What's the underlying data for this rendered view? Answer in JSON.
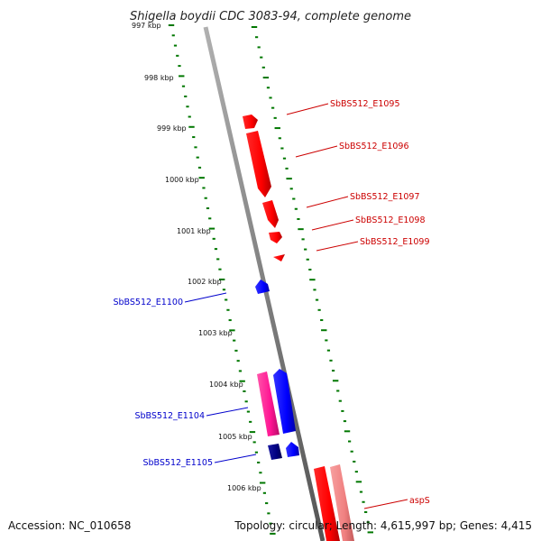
{
  "title": "Shigella boydii CDC 3083-94, complete genome",
  "footer": {
    "accession": "Accession: NC_010658",
    "summary": "Topology: circular; Length: 4,615,997 bp; Genes: 4,415"
  },
  "ruler": {
    "labels": [
      "997 kbp",
      "998 kbp",
      "999 kbp",
      "1000 kbp",
      "1001 kbp",
      "1002 kbp",
      "1003 kbp",
      "1004 kbp",
      "1005 kbp",
      "1006 kbp"
    ]
  },
  "colors": {
    "forward": "#ff0000",
    "forward_light": "#f08080",
    "reverse": "#0000ff",
    "reverse_pink": "#ff1493",
    "reverse_dark": "#000080",
    "backbone": "#808080",
    "ticks": "#007700"
  },
  "genes": [
    {
      "label": "SbBS512_E1095",
      "strand": "forward",
      "color": "#cc0000"
    },
    {
      "label": "SbBS512_E1096",
      "strand": "forward",
      "color": "#cc0000"
    },
    {
      "label": "SbBS512_E1097",
      "strand": "forward",
      "color": "#cc0000"
    },
    {
      "label": "SbBS512_E1098",
      "strand": "forward",
      "color": "#cc0000"
    },
    {
      "label": "SbBS512_E1099",
      "strand": "forward",
      "color": "#cc0000"
    },
    {
      "label": "SbBS512_E1100",
      "strand": "reverse",
      "color": "#0000cc"
    },
    {
      "label": "SbBS512_E1104",
      "strand": "reverse",
      "color": "#0000cc"
    },
    {
      "label": "SbBS512_E1105",
      "strand": "reverse",
      "color": "#0000cc"
    },
    {
      "label": "aspS",
      "strand": "forward",
      "color": "#cc0000"
    }
  ]
}
